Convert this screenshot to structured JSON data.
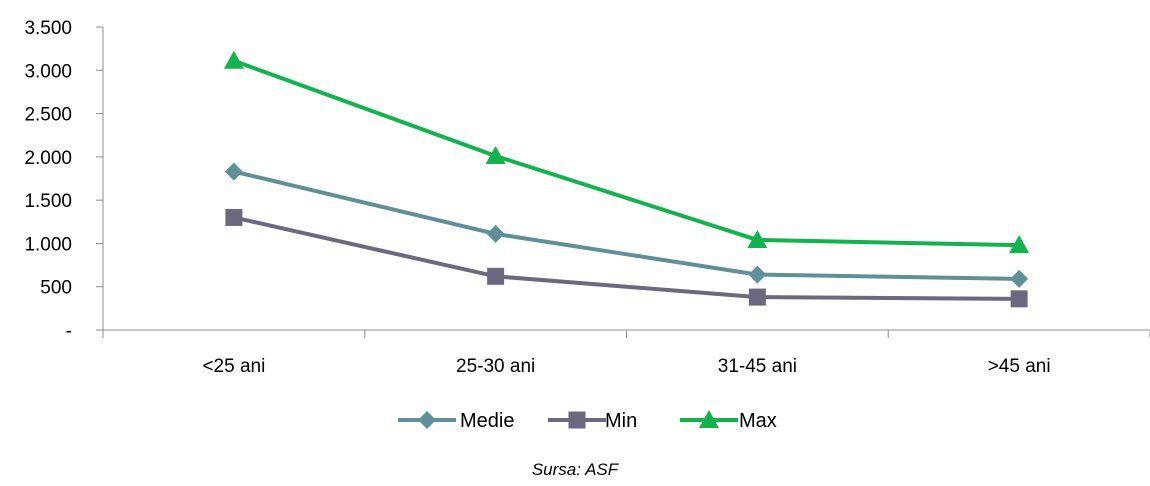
{
  "chart_data": {
    "type": "line",
    "categories": [
      "<25 ani",
      "25-30 ani",
      "31-45 ani",
      ">45 ani"
    ],
    "ylim": [
      0,
      3500
    ],
    "yticks": [
      0,
      500,
      1000,
      1500,
      2000,
      2500,
      3000,
      3500
    ],
    "ytick_labels": [
      "-",
      "500",
      "1.000",
      "1.500",
      "2.000",
      "2.500",
      "3.000",
      "3.500"
    ],
    "grid": false,
    "legend_position": "bottom",
    "series": [
      {
        "name": "Medie",
        "values": [
          1830,
          1110,
          640,
          590
        ],
        "color": "#5f8f98",
        "marker": "diamond"
      },
      {
        "name": "Min",
        "values": [
          1300,
          620,
          380,
          360
        ],
        "color": "#6c6880",
        "marker": "square"
      },
      {
        "name": "Max",
        "values": [
          3110,
          2010,
          1040,
          980
        ],
        "color": "#13b24e",
        "marker": "triangle"
      }
    ]
  },
  "source_note": "Sursa: ASF"
}
